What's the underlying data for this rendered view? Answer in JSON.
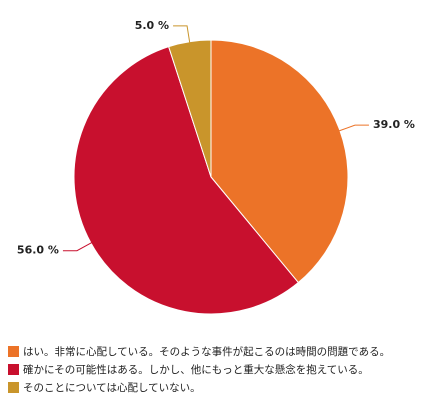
{
  "chart_data": {
    "type": "pie",
    "categories": [
      "はい。非常に心配している。そのような事件が起こるのは時間の問題である。",
      "確かにその可能性はある。しかし、他にもっと重大な懸念を抱えている。",
      "そのことについては心配していない。"
    ],
    "values": [
      39.0,
      56.0,
      5.0
    ],
    "value_labels": [
      "39.0 %",
      "56.0 %",
      "5.0 %"
    ],
    "colors": [
      "#ec7328",
      "#c8102e",
      "#c9952b"
    ]
  }
}
